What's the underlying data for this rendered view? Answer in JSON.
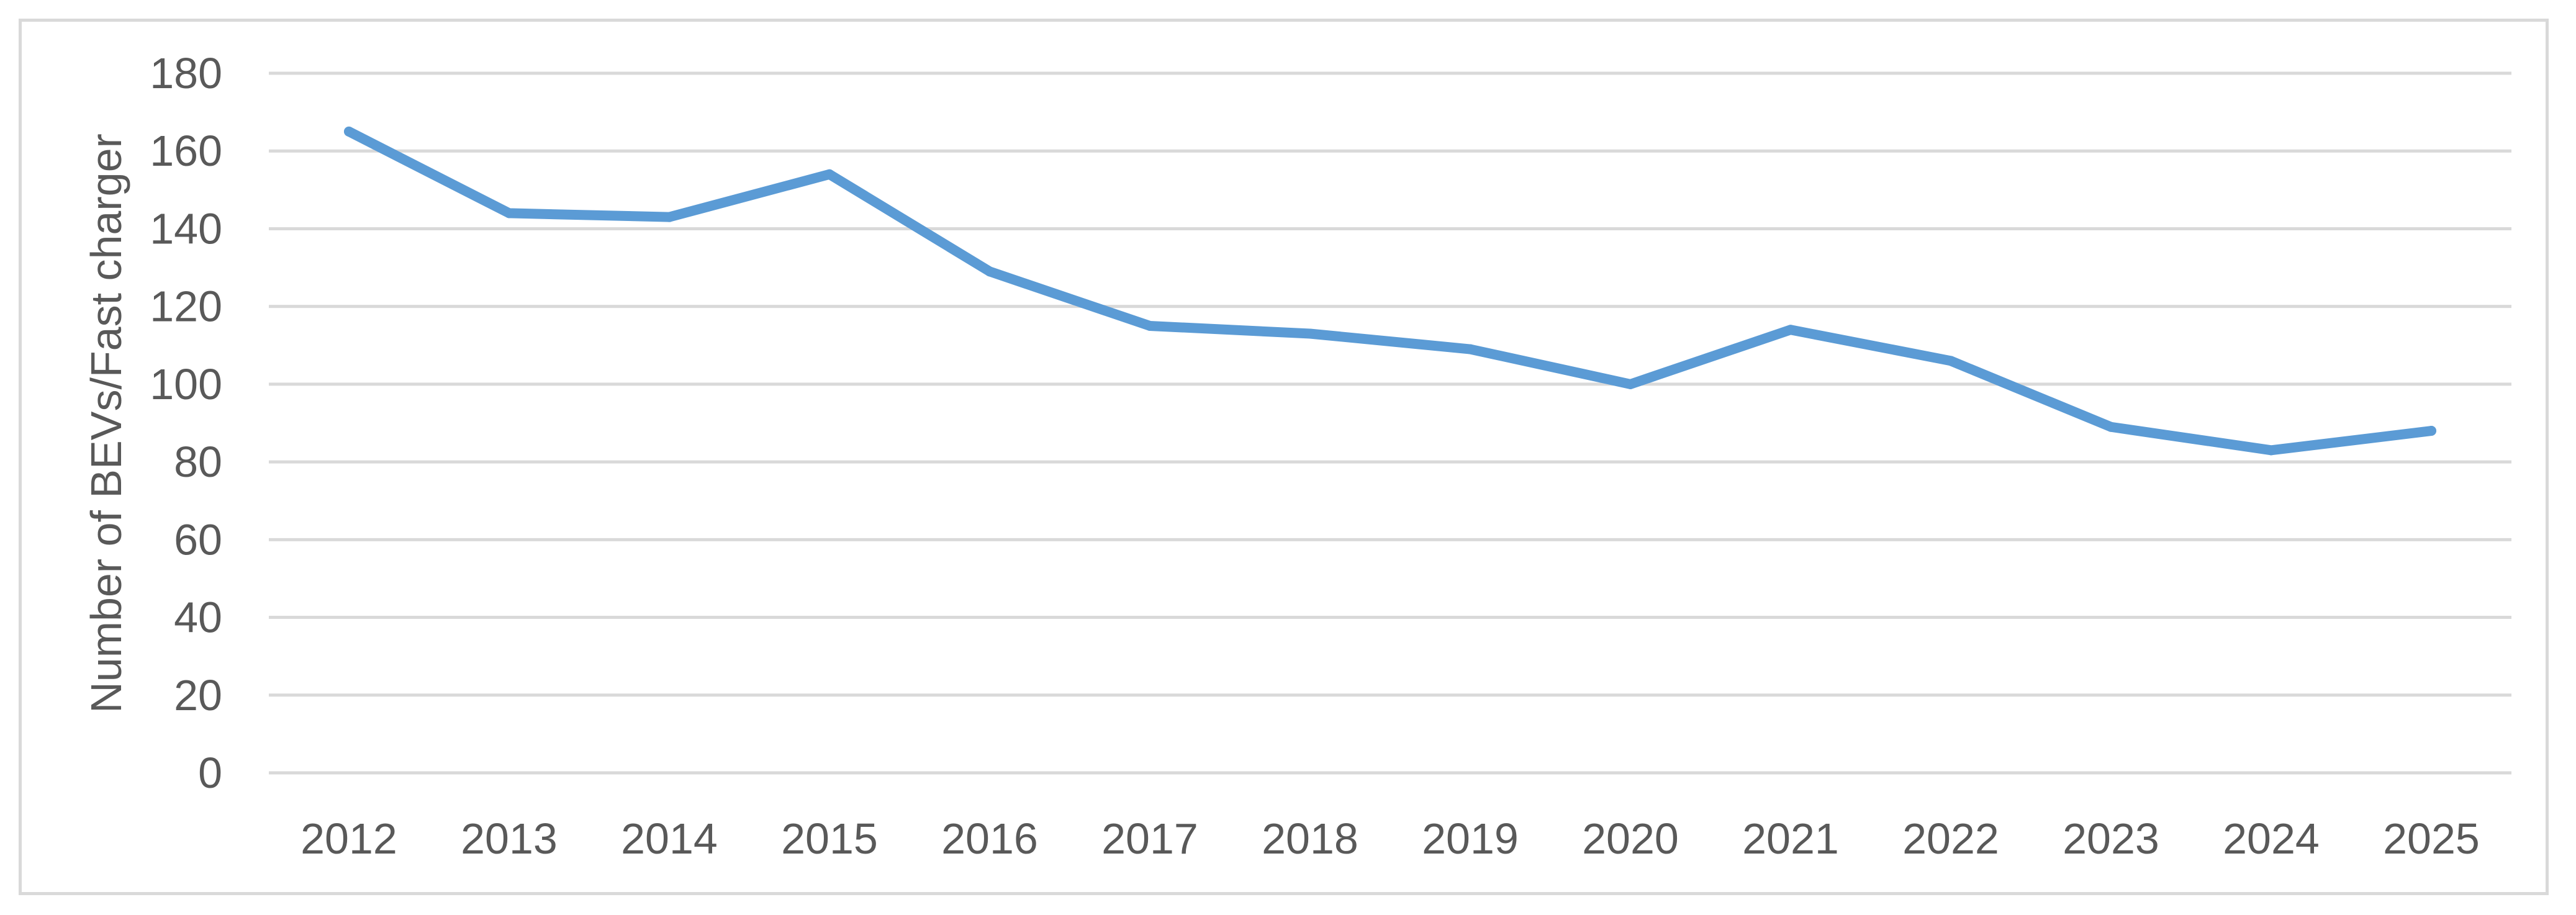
{
  "chart_data": {
    "type": "line",
    "title": "",
    "xlabel": "",
    "ylabel": "Number of BEVs/Fast charger",
    "ylim": [
      0,
      180
    ],
    "yticks": [
      0,
      20,
      40,
      60,
      80,
      100,
      120,
      140,
      160,
      180
    ],
    "grid": true,
    "legend": "none",
    "categories": [
      "2012",
      "2013",
      "2014",
      "2015",
      "2016",
      "2017",
      "2018",
      "2019",
      "2020",
      "2021",
      "2022",
      "2023",
      "2024",
      "2025"
    ],
    "series": [
      {
        "color": "#5b9bd5",
        "values": [
          165,
          144,
          143,
          154,
          129,
          115,
          113,
          109,
          100,
          114,
          106,
          89,
          83,
          88
        ]
      }
    ]
  }
}
